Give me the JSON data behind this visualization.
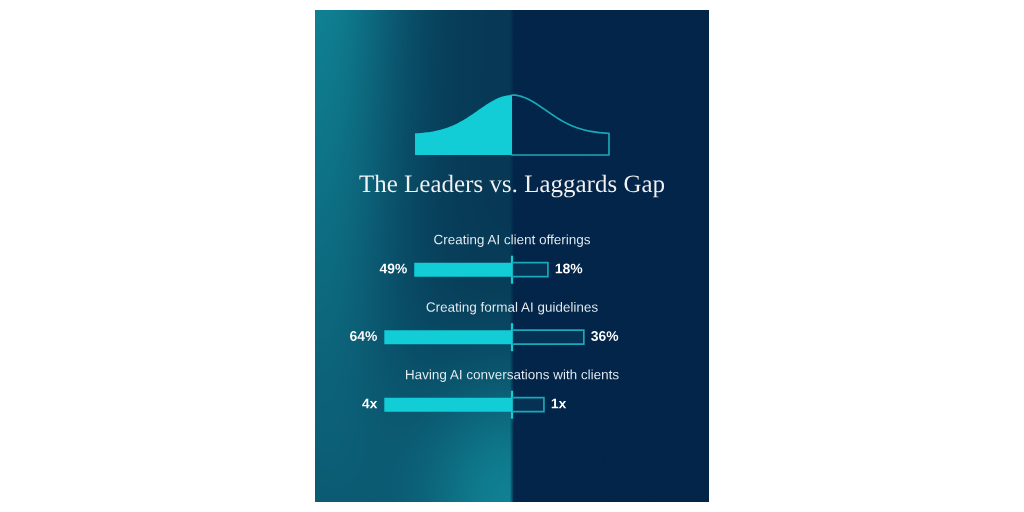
{
  "chart_data": [
    {
      "type": "bar",
      "orientation": "horizontal",
      "title": "The Leaders vs. Laggards Gap",
      "categories": [
        "Creating AI client offerings",
        "Creating formal AI guidelines"
      ],
      "color": "#12ccd6",
      "values": [
        49,
        64
      ],
      "value_labels": [
        "49%",
        "64%"
      ]
    },
    {
      "type": "bar",
      "orientation": "horizontal",
      "categories": [
        null,
        null
      ],
      "color": "#1aa9b9",
      "values": [
        18,
        36
      ],
      "value_labels": [
        "18%",
        "36%"
      ]
    },
    {
      "type": "bar",
      "orientation": "horizontal",
      "categories": [
        "Having AI conversations with clients"
      ],
      "color": "#12ccd6",
      "values": [
        4
      ],
      "value_labels": [
        "4x"
      ]
    },
    {
      "type": "bar",
      "orientation": "horizontal",
      "categories": [
        null
      ],
      "color": "#1aa9b9",
      "values": [
        1
      ],
      "value_labels": [
        "1x"
      ]
    }
  ]
}
